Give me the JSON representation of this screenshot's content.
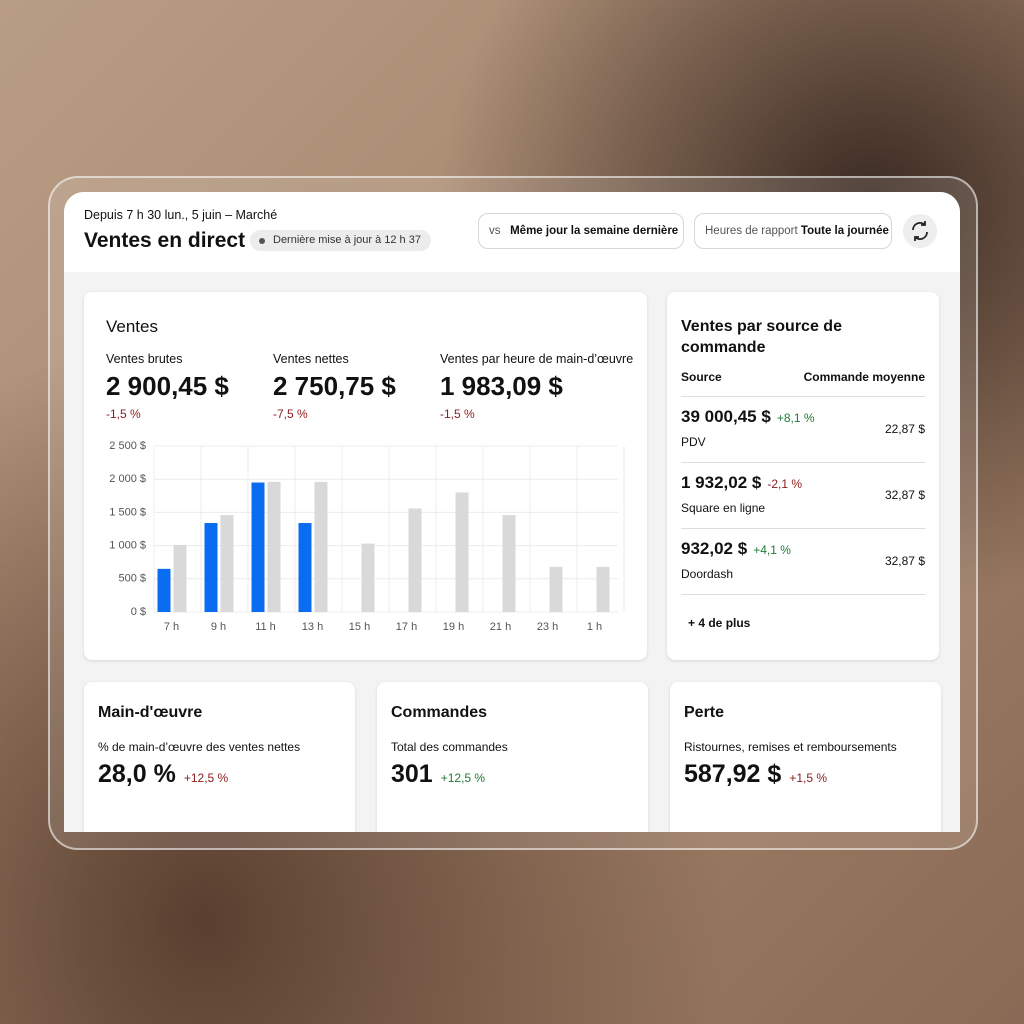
{
  "header": {
    "subtitle": "Depuis 7 h 30 lun., 5 juin – Marché",
    "title": "Ventes en direct",
    "badge": "Dernière mise à jour à 12 h 37",
    "compare": {
      "prefix": "vs",
      "value": "Même jour la semaine dernière"
    },
    "hours": {
      "label": "Heures de rapport",
      "value": "Toute la journée"
    }
  },
  "sales_card": {
    "title": "Ventes",
    "metrics": [
      {
        "label": "Ventes brutes",
        "value": "2 900,45 $",
        "change": "-1,5 %"
      },
      {
        "label": "Ventes nettes",
        "value": "2 750,75 $",
        "change": "-7,5 %"
      },
      {
        "label": "Ventes par heure de main-d’œuvre",
        "value": "1 983,09 $",
        "change": "-1,5 %"
      }
    ]
  },
  "chart_data": {
    "type": "bar",
    "categories": [
      "7 h",
      "9 h",
      "11 h",
      "13 h",
      "15 h",
      "17 h",
      "19 h",
      "21 h",
      "23 h",
      "1 h"
    ],
    "series": [
      {
        "color": "#0a6cf0",
        "values": [
          650,
          1340,
          1950,
          1340,
          null,
          null,
          null,
          null,
          null,
          null
        ]
      },
      {
        "color": "#d9d9d9",
        "values": [
          1010,
          1460,
          1960,
          1960,
          1030,
          1560,
          1800,
          1460,
          680,
          680
        ]
      }
    ],
    "ylim": [
      0,
      2500
    ],
    "yticks": [
      {
        "value": 0,
        "label": "0 $"
      },
      {
        "value": 500,
        "label": "500 $"
      },
      {
        "value": 1000,
        "label": "1 000 $"
      },
      {
        "value": 1500,
        "label": "1 500 $"
      },
      {
        "value": 2000,
        "label": "2 000 $"
      },
      {
        "value": 2500,
        "label": "2 500 $"
      }
    ],
    "grid": true
  },
  "source_card": {
    "title": "Ventes par source de commande",
    "columns": [
      "Source",
      "Commande moyenne"
    ],
    "rows": [
      {
        "amount": "39 000,45 $",
        "change": "+8,1 %",
        "name": "PDV",
        "average": "22,87 $"
      },
      {
        "amount": "1 932,02 $",
        "change": "-2,1 %",
        "name": "Square en ligne",
        "average": "32,87 $"
      },
      {
        "amount": "932,02 $",
        "change": "+4,1 %",
        "name": "Doordash",
        "average": "32,87 $"
      }
    ],
    "more": "+ 4 de plus"
  },
  "cards": [
    {
      "title": "Main-d'œuvre",
      "label": "% de main-d’œuvre des ventes nettes",
      "value": "28,0 %",
      "change": "+12,5 %"
    },
    {
      "title": "Commandes",
      "label": "Total des commandes",
      "value": "301",
      "change": "+12,5 %"
    },
    {
      "title": "Perte",
      "label": "Ristournes, remises et remboursements",
      "value": "587,92 $",
      "change": "+1,5 %"
    }
  ]
}
